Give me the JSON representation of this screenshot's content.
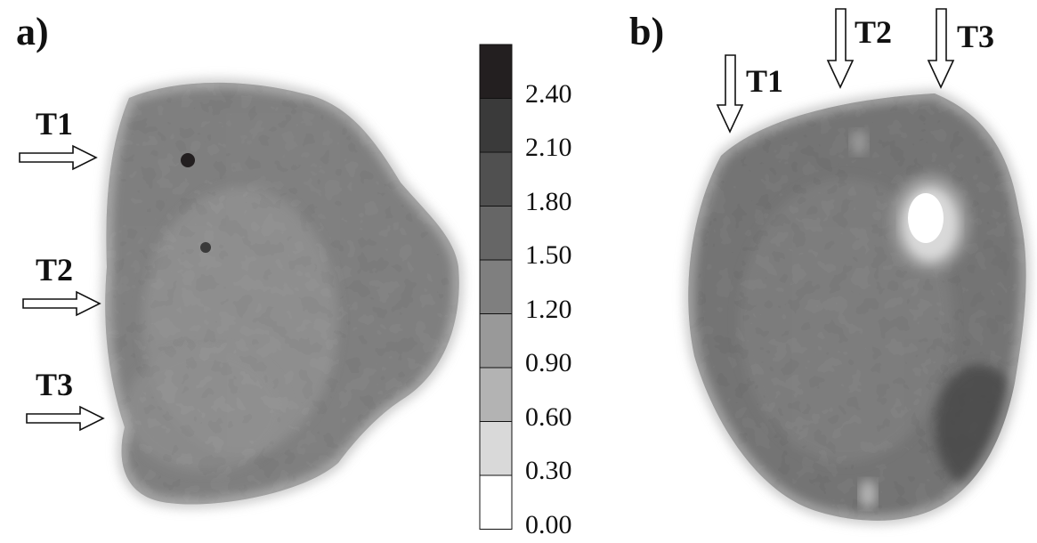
{
  "panels": [
    {
      "id": "a",
      "label": "a)",
      "arrows": [
        "T1",
        "T2",
        "T3"
      ],
      "arrow_direction": "right"
    },
    {
      "id": "b",
      "label": "b)",
      "arrows": [
        "T1",
        "T2",
        "T3"
      ],
      "arrow_direction": "down"
    }
  ],
  "colorbar": {
    "ticks": [
      "2.40",
      "2.10",
      "1.80",
      "1.50",
      "1.20",
      "0.90",
      "0.60",
      "0.30",
      "0.00"
    ],
    "colors": [
      "#231f20",
      "#3a3a3a",
      "#505050",
      "#666666",
      "#7f7f7f",
      "#999999",
      "#b3b3b3",
      "#d9d9d9",
      "#ffffff"
    ]
  }
}
